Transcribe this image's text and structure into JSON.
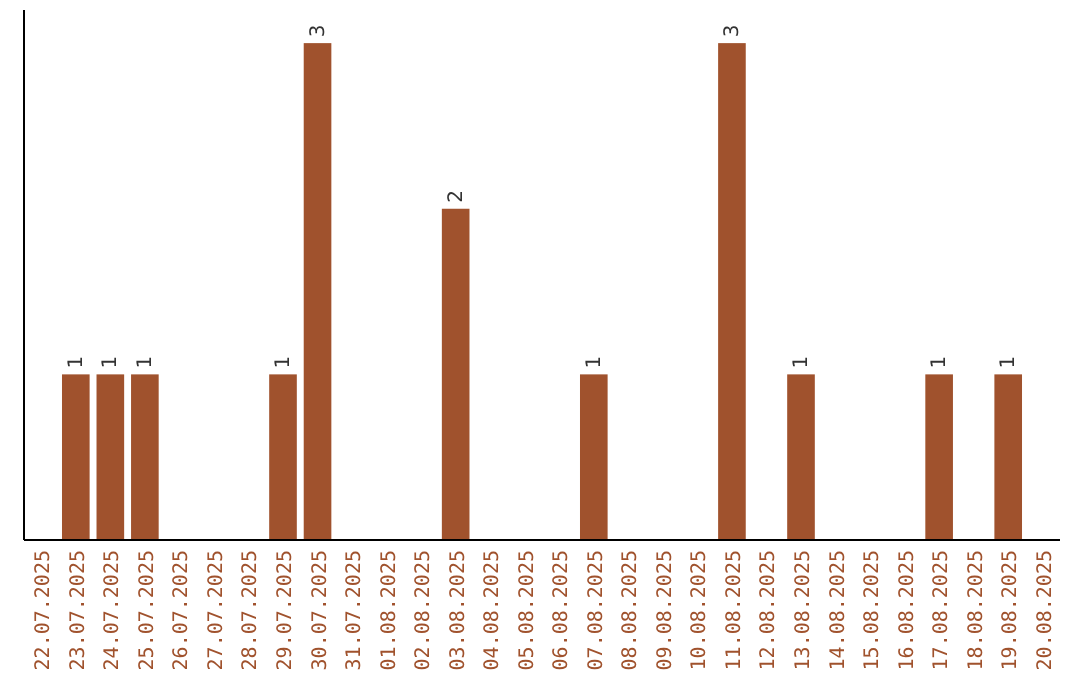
{
  "chart_data": {
    "type": "bar",
    "categories": [
      "22.07.2025",
      "23.07.2025",
      "24.07.2025",
      "25.07.2025",
      "26.07.2025",
      "27.07.2025",
      "28.07.2025",
      "29.07.2025",
      "30.07.2025",
      "31.07.2025",
      "01.08.2025",
      "02.08.2025",
      "03.08.2025",
      "04.08.2025",
      "05.08.2025",
      "06.08.2025",
      "07.08.2025",
      "08.08.2025",
      "09.08.2025",
      "10.08.2025",
      "11.08.2025",
      "12.08.2025",
      "13.08.2025",
      "14.08.2025",
      "15.08.2025",
      "16.08.2025",
      "17.08.2025",
      "18.08.2025",
      "19.08.2025",
      "20.08.2025"
    ],
    "values": [
      null,
      1,
      1,
      1,
      null,
      null,
      null,
      1,
      3,
      null,
      null,
      null,
      2,
      null,
      null,
      null,
      1,
      null,
      null,
      null,
      3,
      null,
      1,
      null,
      null,
      null,
      1,
      null,
      1,
      null
    ],
    "color": "#a0522d",
    "ylim": [
      0,
      3.2
    ],
    "tick_labels": "x",
    "data_labels": true
  }
}
